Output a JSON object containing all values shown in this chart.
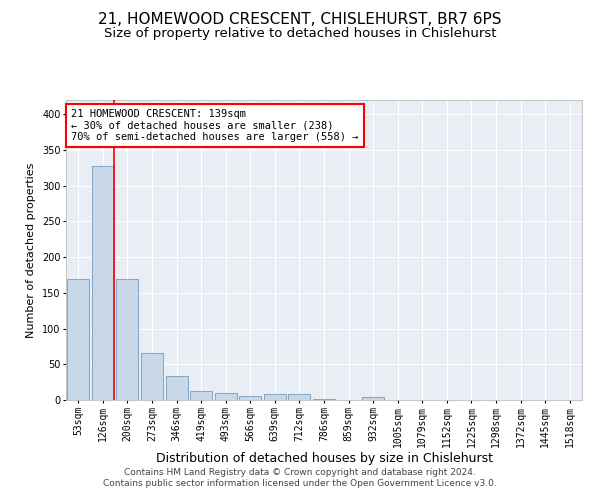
{
  "title": "21, HOMEWOOD CRESCENT, CHISLEHURST, BR7 6PS",
  "subtitle": "Size of property relative to detached houses in Chislehurst",
  "xlabel": "Distribution of detached houses by size in Chislehurst",
  "ylabel": "Number of detached properties",
  "categories": [
    "53sqm",
    "126sqm",
    "200sqm",
    "273sqm",
    "346sqm",
    "419sqm",
    "493sqm",
    "566sqm",
    "639sqm",
    "712sqm",
    "786sqm",
    "859sqm",
    "932sqm",
    "1005sqm",
    "1079sqm",
    "1152sqm",
    "1225sqm",
    "1298sqm",
    "1372sqm",
    "1445sqm",
    "1518sqm"
  ],
  "values": [
    170,
    327,
    170,
    66,
    33,
    12,
    10,
    5,
    9,
    9,
    2,
    0,
    4,
    0,
    0,
    0,
    0,
    0,
    0,
    0,
    0
  ],
  "bar_color": "#c8d8e8",
  "bar_edge_color": "#7799bb",
  "subject_line_bar_index": 1,
  "annotation_text": "21 HOMEWOOD CRESCENT: 139sqm\n← 30% of detached houses are smaller (238)\n70% of semi-detached houses are larger (558) →",
  "annotation_box_color": "white",
  "annotation_box_edge_color": "red",
  "subject_line_color": "red",
  "ylim": [
    0,
    420
  ],
  "yticks": [
    0,
    50,
    100,
    150,
    200,
    250,
    300,
    350,
    400
  ],
  "background_color": "#e8eef4",
  "footer_text": "Contains HM Land Registry data © Crown copyright and database right 2024.\nContains public sector information licensed under the Open Government Licence v3.0.",
  "grid_color": "white",
  "title_fontsize": 11,
  "subtitle_fontsize": 9.5,
  "xlabel_fontsize": 9,
  "ylabel_fontsize": 8,
  "tick_fontsize": 7,
  "footer_fontsize": 6.5,
  "annotation_fontsize": 7.5
}
